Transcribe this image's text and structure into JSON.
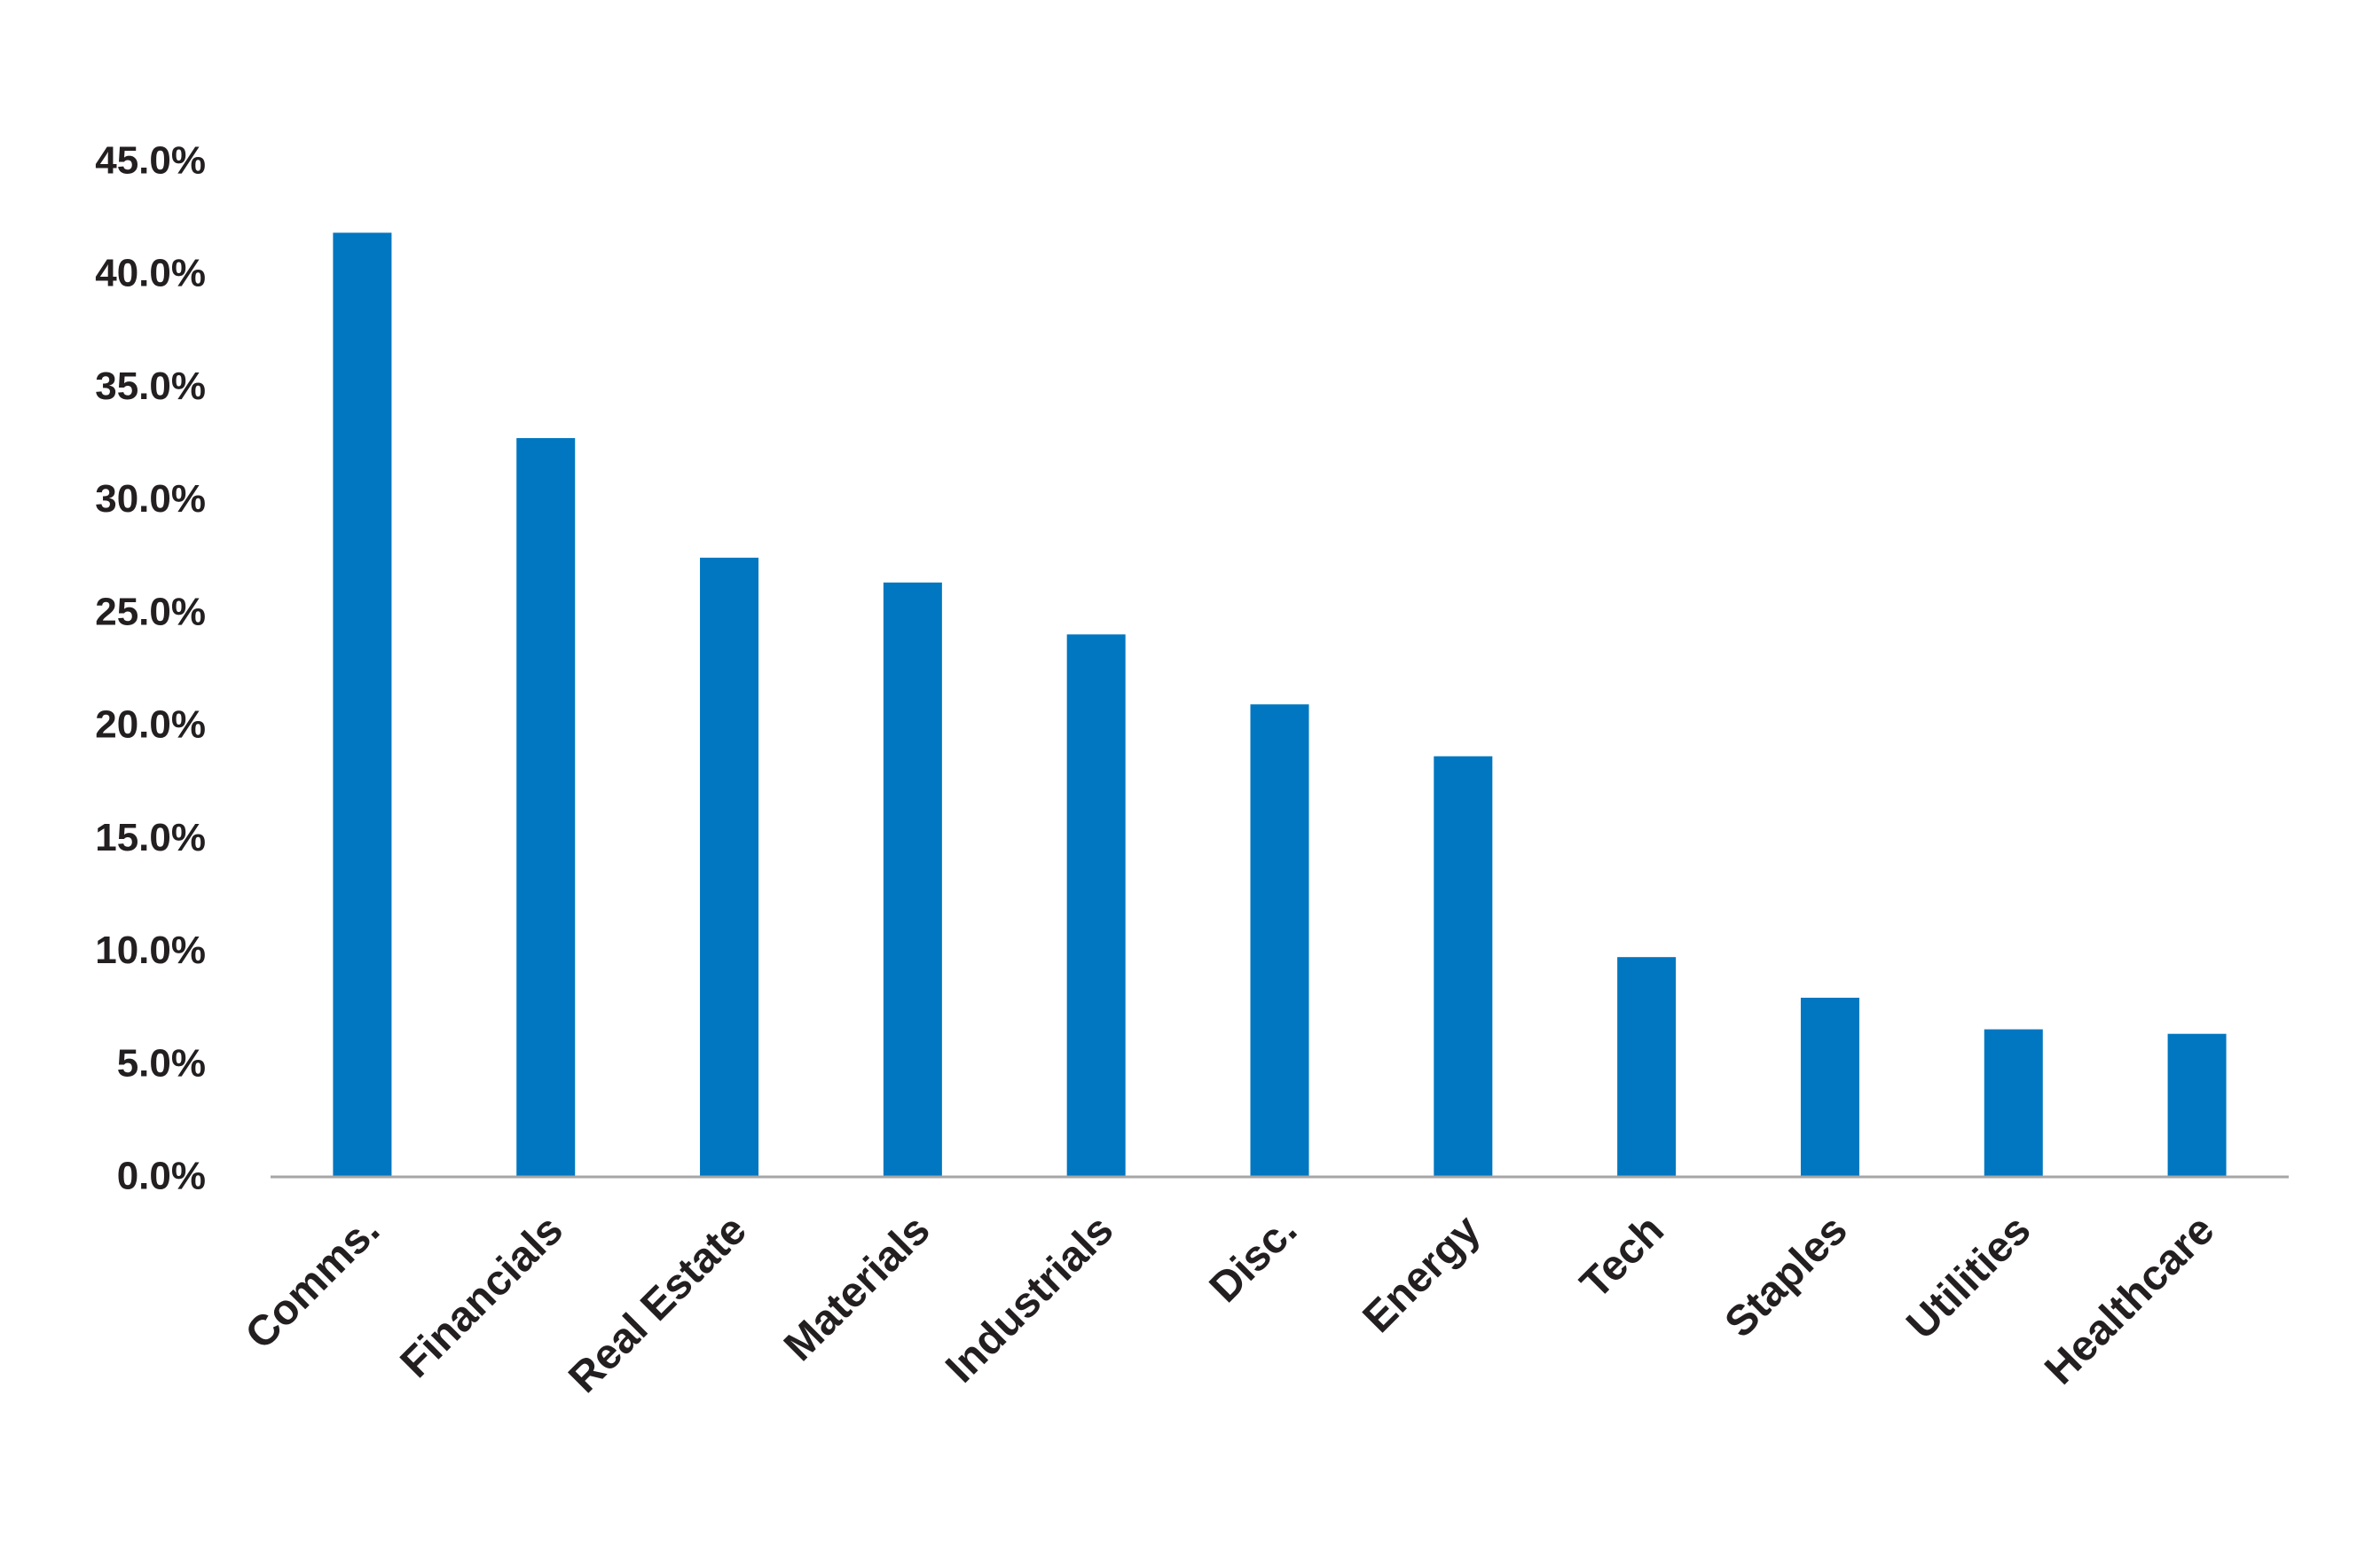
{
  "chart_data": {
    "type": "bar",
    "categories": [
      "Comms.",
      "Financials",
      "Real Estate",
      "Materials",
      "Industrials",
      "Disc.",
      "Energy",
      "Tech",
      "Staples",
      "Utilities",
      "Healthcare"
    ],
    "values": [
      41.8,
      32.7,
      27.4,
      26.3,
      24.0,
      20.9,
      18.6,
      9.7,
      7.9,
      6.5,
      6.3
    ],
    "ylim": [
      0,
      45
    ],
    "yticks": [
      {
        "value": 0,
        "label": "0.0%"
      },
      {
        "value": 5,
        "label": "5.0%"
      },
      {
        "value": 10,
        "label": "10.0%"
      },
      {
        "value": 15,
        "label": "15.0%"
      },
      {
        "value": 20,
        "label": "20.0%"
      },
      {
        "value": 25,
        "label": "25.0%"
      },
      {
        "value": 30,
        "label": "30.0%"
      },
      {
        "value": 35,
        "label": "35.0%"
      },
      {
        "value": 40,
        "label": "40.0%"
      },
      {
        "value": 45,
        "label": "45.0%"
      }
    ],
    "title": "",
    "xlabel": "",
    "ylabel": "",
    "grid": false,
    "legend": "none",
    "colors": {
      "bar": "#0077c0",
      "axis": "#a6a6a6",
      "text": "#231f20"
    }
  }
}
